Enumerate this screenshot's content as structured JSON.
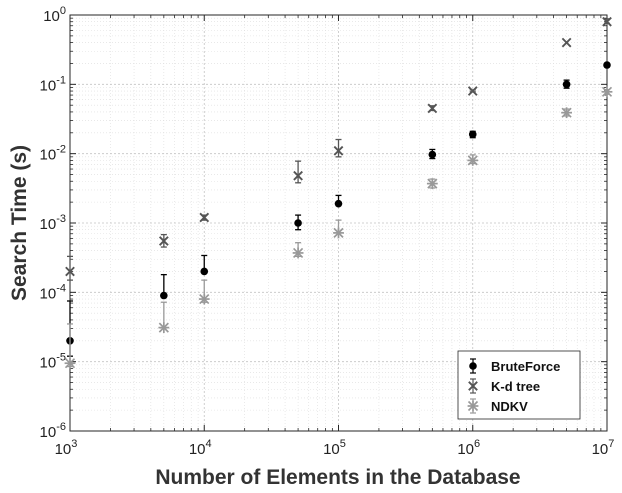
{
  "chart_data": {
    "type": "scatter",
    "xlabel": "Number of Elements in the Database",
    "ylabel": "Search Time (s)",
    "x_scale": "log",
    "y_scale": "log",
    "xlim": [
      1000,
      10000000
    ],
    "ylim": [
      1e-06,
      1
    ],
    "grid": true,
    "legend_position": "bottom-right",
    "x_ticks": [
      {
        "base": "10",
        "exp": "3"
      },
      {
        "base": "10",
        "exp": "4"
      },
      {
        "base": "10",
        "exp": "5"
      },
      {
        "base": "10",
        "exp": "6"
      },
      {
        "base": "10",
        "exp": "7"
      }
    ],
    "y_ticks": [
      {
        "base": "10",
        "exp": "-6"
      },
      {
        "base": "10",
        "exp": "-5"
      },
      {
        "base": "10",
        "exp": "-4"
      },
      {
        "base": "10",
        "exp": "-3"
      },
      {
        "base": "10",
        "exp": "-2"
      },
      {
        "base": "10",
        "exp": "-1"
      },
      {
        "base": "10",
        "exp": "0"
      }
    ],
    "series": [
      {
        "name": "BruteForce",
        "marker": "dot",
        "color": "#000000",
        "points": [
          {
            "x": 1000,
            "y": 2e-05,
            "lo": 1.2e-05,
            "hi": 7.5e-05
          },
          {
            "x": 5000,
            "y": 9e-05,
            "lo": 9e-05,
            "hi": 0.00018
          },
          {
            "x": 10000,
            "y": 0.0002,
            "lo": 0.0002,
            "hi": 0.00034
          },
          {
            "x": 50000,
            "y": 0.001,
            "lo": 0.0008,
            "hi": 0.0013
          },
          {
            "x": 100000,
            "y": 0.0019,
            "lo": 0.0019,
            "hi": 0.0025
          },
          {
            "x": 500000,
            "y": 0.0097,
            "lo": 0.0085,
            "hi": 0.0115
          },
          {
            "x": 1000000,
            "y": 0.019,
            "lo": 0.017,
            "hi": 0.021
          },
          {
            "x": 5000000,
            "y": 0.1,
            "lo": 0.088,
            "hi": 0.115
          },
          {
            "x": 10000000,
            "y": 0.19,
            "lo": 0.19,
            "hi": 0.19
          }
        ]
      },
      {
        "name": "K-d tree",
        "marker": "x",
        "color": "#555555",
        "points": [
          {
            "x": 1000,
            "y": 0.0002,
            "lo": 0.00015,
            "hi": 0.00033
          },
          {
            "x": 5000,
            "y": 0.00055,
            "lo": 0.00045,
            "hi": 0.00068
          },
          {
            "x": 10000,
            "y": 0.0012,
            "lo": 0.0011,
            "hi": 0.0013
          },
          {
            "x": 50000,
            "y": 0.0048,
            "lo": 0.0038,
            "hi": 0.0078
          },
          {
            "x": 100000,
            "y": 0.011,
            "lo": 0.009,
            "hi": 0.016
          },
          {
            "x": 500000,
            "y": 0.045,
            "lo": 0.042,
            "hi": 0.049
          },
          {
            "x": 1000000,
            "y": 0.08,
            "lo": 0.078,
            "hi": 0.083
          },
          {
            "x": 5000000,
            "y": 0.4,
            "lo": 0.4,
            "hi": 0.4
          },
          {
            "x": 10000000,
            "y": 0.8,
            "lo": 0.76,
            "hi": 0.88
          }
        ]
      },
      {
        "name": "NDKV",
        "marker": "asterisk",
        "color": "#999999",
        "points": [
          {
            "x": 1000,
            "y": 9.5e-06,
            "lo": 8.5e-06,
            "hi": 3.5e-05
          },
          {
            "x": 5000,
            "y": 3.1e-05,
            "lo": 3.1e-05,
            "hi": 7.2e-05
          },
          {
            "x": 10000,
            "y": 8e-05,
            "lo": 7.2e-05,
            "hi": 0.00015
          },
          {
            "x": 50000,
            "y": 0.00037,
            "lo": 0.00033,
            "hi": 0.00052
          },
          {
            "x": 100000,
            "y": 0.00072,
            "lo": 0.00072,
            "hi": 0.0011
          },
          {
            "x": 500000,
            "y": 0.0037,
            "lo": 0.0032,
            "hi": 0.0043
          },
          {
            "x": 1000000,
            "y": 0.008,
            "lo": 0.0072,
            "hi": 0.0096
          },
          {
            "x": 5000000,
            "y": 0.039,
            "lo": 0.035,
            "hi": 0.044
          },
          {
            "x": 10000000,
            "y": 0.078,
            "lo": 0.072,
            "hi": 0.084
          }
        ]
      }
    ]
  }
}
